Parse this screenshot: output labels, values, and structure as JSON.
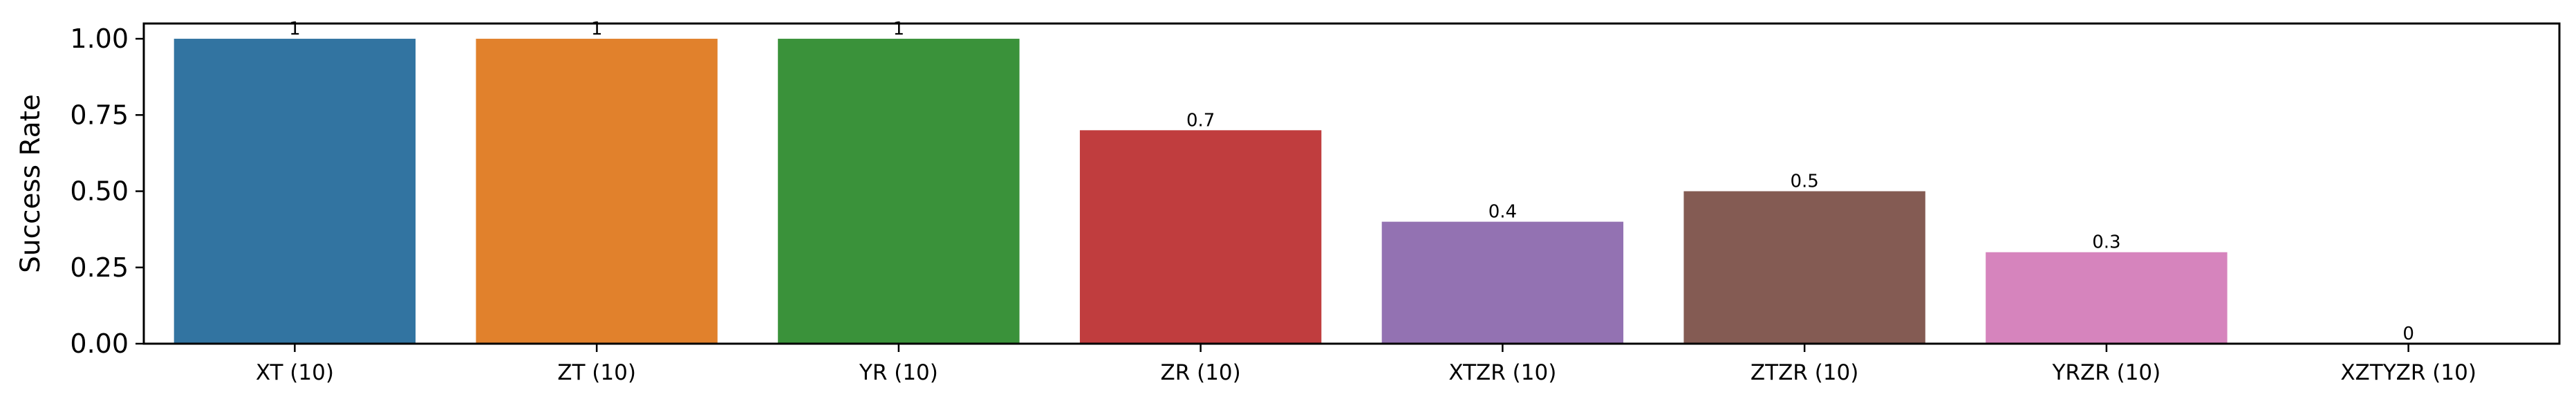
{
  "chart_data": {
    "type": "bar",
    "categories": [
      "XT (10)",
      "ZT (10)",
      "YR (10)",
      "ZR (10)",
      "XTZR (10)",
      "ZTZR (10)",
      "YRZR (10)",
      "XZTYZR (10)"
    ],
    "values": [
      1,
      1,
      1,
      0.7,
      0.4,
      0.5,
      0.3,
      0
    ],
    "value_labels": [
      "1",
      "1",
      "1",
      "0.7",
      "0.4",
      "0.5",
      "0.3",
      "0"
    ],
    "colors": [
      "#3274a1",
      "#e1812c",
      "#3a923a",
      "#c03d3e",
      "#9372b2",
      "#845b53",
      "#d684bd",
      "#7f7f7f"
    ],
    "title": "",
    "xlabel": "",
    "ylabel": "Success Rate",
    "ylim": [
      0,
      1.05
    ],
    "yticks": [
      0,
      0.25,
      0.5,
      0.75,
      1.0
    ],
    "ytick_labels": [
      "0.00",
      "0.25",
      "0.50",
      "0.75",
      "1.00"
    ],
    "grid": false,
    "legend": "none"
  }
}
